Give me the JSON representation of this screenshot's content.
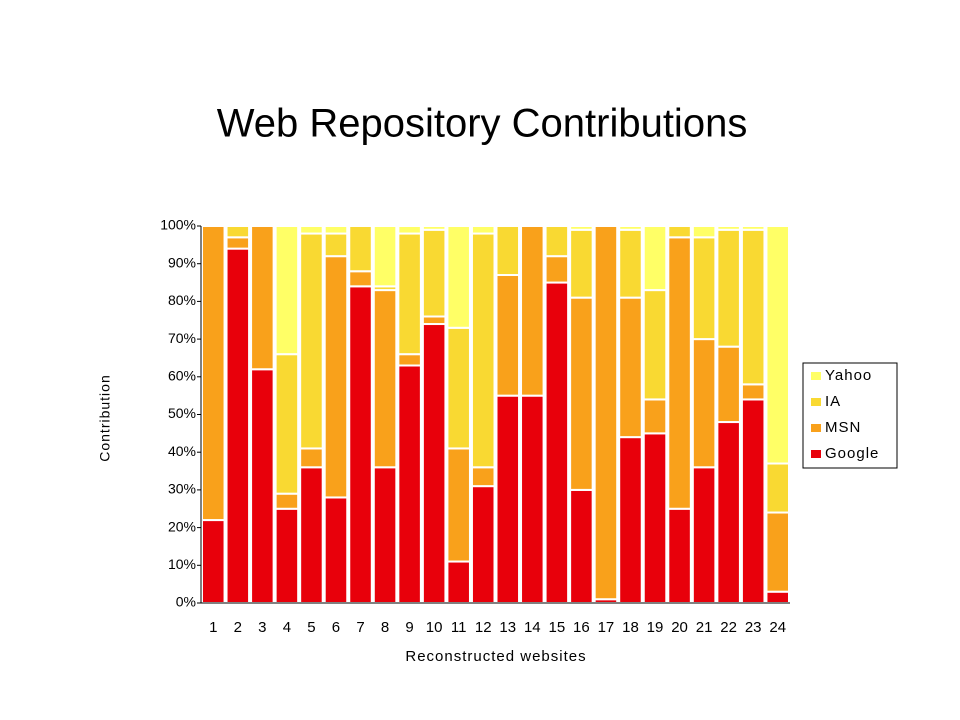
{
  "chart_data": {
    "type": "stacked_bar",
    "stacked": true,
    "percent": true,
    "title": "Web Repository Contributions",
    "x_label": "Reconstructed websites",
    "y_label": "Contribution",
    "categories": [
      "1",
      "2",
      "3",
      "4",
      "5",
      "6",
      "7",
      "8",
      "9",
      "10",
      "11",
      "12",
      "13",
      "14",
      "15",
      "16",
      "17",
      "18",
      "19",
      "20",
      "21",
      "22",
      "23",
      "24"
    ],
    "series": [
      {
        "name": "Google",
        "color": "#e8000b",
        "values": [
          22,
          94,
          62,
          25,
          36,
          28,
          84,
          36,
          63,
          74,
          11,
          31,
          55,
          55,
          85,
          30,
          1,
          44,
          45,
          25,
          36,
          48,
          54,
          3
        ]
      },
      {
        "name": "MSN",
        "color": "#f9a11b",
        "values": [
          78,
          3,
          38,
          4,
          5,
          64,
          4,
          47,
          3,
          2,
          30,
          5,
          32,
          45,
          7,
          51,
          99,
          37,
          9,
          72,
          34,
          20,
          4,
          21
        ]
      },
      {
        "name": "IA",
        "color": "#f9d932",
        "values": [
          0,
          3,
          0,
          37,
          57,
          6,
          12,
          1,
          32,
          23,
          32,
          62,
          13,
          0,
          8,
          18,
          0,
          18,
          29,
          3,
          27,
          31,
          41,
          13
        ]
      },
      {
        "name": "Yahoo",
        "color": "#ffff66",
        "values": [
          0,
          0,
          0,
          34,
          2,
          2,
          0,
          16,
          2,
          1,
          27,
          2,
          0,
          0,
          0,
          1,
          0,
          1,
          17,
          0,
          3,
          1,
          1,
          63
        ]
      }
    ],
    "ylim": [
      0,
      100
    ],
    "yticks": [
      {
        "value": 0,
        "label": "0%"
      },
      {
        "value": 10,
        "label": "10%"
      },
      {
        "value": 20,
        "label": "20%"
      },
      {
        "value": 30,
        "label": "30%"
      },
      {
        "value": 40,
        "label": "40%"
      },
      {
        "value": 50,
        "label": "50%"
      },
      {
        "value": 60,
        "label": "60%"
      },
      {
        "value": 70,
        "label": "70%"
      },
      {
        "value": 80,
        "label": "80%"
      },
      {
        "value": 90,
        "label": "90%"
      },
      {
        "value": 100,
        "label": "100%"
      }
    ],
    "grid": false,
    "legend_position": "right"
  }
}
